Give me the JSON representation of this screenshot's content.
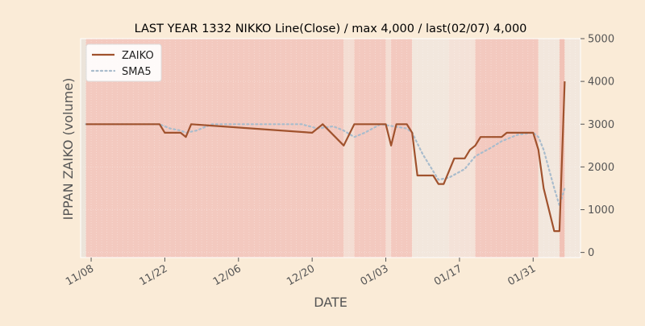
{
  "chart_data": {
    "type": "line",
    "title": "LAST YEAR 1332 NIKKO Line(Close) / max 4,000 / last(02/07) 4,000",
    "xlabel": "DATE",
    "ylabel": "IPPAN ZAIKO (volume)",
    "ylim": [
      -120,
      5000
    ],
    "y_axis_side": "right",
    "y_ticks": [
      0,
      1000,
      2000,
      3000,
      4000,
      5000
    ],
    "y_tick_labels": [
      "0",
      "1000",
      "2000",
      "3000",
      "4000",
      "5000"
    ],
    "x_range": [
      "2022-11-06",
      "2023-02-09"
    ],
    "x_ticks": [
      "2022-11-08",
      "2022-11-22",
      "2022-12-06",
      "2022-12-20",
      "2023-01-03",
      "2023-01-17",
      "2023-01-31"
    ],
    "x_tick_labels": [
      "11/08",
      "11/22",
      "12/06",
      "12/20",
      "01/03",
      "01/17",
      "01/31"
    ],
    "legend_position": "top-left",
    "grid": true,
    "series": [
      {
        "name": "ZAIKO",
        "color": "#a0522d",
        "style": "solid",
        "points": [
          [
            "2022-11-07",
            3000
          ],
          [
            "2022-11-21",
            3000
          ],
          [
            "2022-11-22",
            2800
          ],
          [
            "2022-11-25",
            2800
          ],
          [
            "2022-11-26",
            2700
          ],
          [
            "2022-11-27",
            3000
          ],
          [
            "2022-12-20",
            2800
          ],
          [
            "2022-12-22",
            3000
          ],
          [
            "2022-12-26",
            2500
          ],
          [
            "2022-12-28",
            3000
          ],
          [
            "2023-01-03",
            3000
          ],
          [
            "2023-01-04",
            2500
          ],
          [
            "2023-01-05",
            3000
          ],
          [
            "2023-01-07",
            3000
          ],
          [
            "2023-01-08",
            2800
          ],
          [
            "2023-01-09",
            1800
          ],
          [
            "2023-01-12",
            1800
          ],
          [
            "2023-01-13",
            1600
          ],
          [
            "2023-01-14",
            1600
          ],
          [
            "2023-01-16",
            2200
          ],
          [
            "2023-01-18",
            2200
          ],
          [
            "2023-01-19",
            2400
          ],
          [
            "2023-01-20",
            2500
          ],
          [
            "2023-01-21",
            2700
          ],
          [
            "2023-01-25",
            2700
          ],
          [
            "2023-01-26",
            2800
          ],
          [
            "2023-01-31",
            2800
          ],
          [
            "2023-02-01",
            2400
          ],
          [
            "2023-02-02",
            1500
          ],
          [
            "2023-02-04",
            500
          ],
          [
            "2023-02-05",
            500
          ],
          [
            "2023-02-06",
            4000
          ]
        ]
      },
      {
        "name": "SMA5",
        "color": "#a9bccc",
        "style": "dotted",
        "points": [
          [
            "2022-11-07",
            3000
          ],
          [
            "2022-11-21",
            3000
          ],
          [
            "2022-11-23",
            2900
          ],
          [
            "2022-11-25",
            2850
          ],
          [
            "2022-11-26",
            2800
          ],
          [
            "2022-11-28",
            2850
          ],
          [
            "2022-11-30",
            2950
          ],
          [
            "2022-12-01",
            3000
          ],
          [
            "2022-12-18",
            3000
          ],
          [
            "2022-12-21",
            2900
          ],
          [
            "2022-12-24",
            2950
          ],
          [
            "2022-12-26",
            2850
          ],
          [
            "2022-12-28",
            2700
          ],
          [
            "2022-12-30",
            2800
          ],
          [
            "2023-01-02",
            3000
          ],
          [
            "2023-01-07",
            2900
          ],
          [
            "2023-01-08",
            2800
          ],
          [
            "2023-01-10",
            2300
          ],
          [
            "2023-01-12",
            1900
          ],
          [
            "2023-01-13",
            1700
          ],
          [
            "2023-01-15",
            1750
          ],
          [
            "2023-01-18",
            1950
          ],
          [
            "2023-01-20",
            2250
          ],
          [
            "2023-01-23",
            2450
          ],
          [
            "2023-01-25",
            2600
          ],
          [
            "2023-01-28",
            2750
          ],
          [
            "2023-01-31",
            2800
          ],
          [
            "2023-02-01",
            2700
          ],
          [
            "2023-02-02",
            2400
          ],
          [
            "2023-02-04",
            1500
          ],
          [
            "2023-02-05",
            1100
          ],
          [
            "2023-02-06",
            1500
          ]
        ]
      }
    ],
    "background_bands": [
      {
        "from": "2022-11-06",
        "to": "2022-11-07",
        "color": "#ece4da"
      },
      {
        "from": "2022-11-07",
        "to": "2022-12-26",
        "color": "#f3c9bf"
      },
      {
        "from": "2022-12-26",
        "to": "2022-12-28",
        "color": "#f4ddd3"
      },
      {
        "from": "2022-12-28",
        "to": "2023-01-03",
        "color": "#f3c9bf"
      },
      {
        "from": "2023-01-03",
        "to": "2023-01-04",
        "color": "#f4ddd3"
      },
      {
        "from": "2023-01-04",
        "to": "2023-01-08",
        "color": "#f3c9bf"
      },
      {
        "from": "2023-01-08",
        "to": "2023-01-15",
        "color": "#f2e7dd"
      },
      {
        "from": "2023-01-15",
        "to": "2023-01-20",
        "color": "#f4e2d8"
      },
      {
        "from": "2023-01-20",
        "to": "2023-02-01",
        "color": "#f3c9bf"
      },
      {
        "from": "2023-02-01",
        "to": "2023-02-05",
        "color": "#f2e7dd"
      },
      {
        "from": "2023-02-05",
        "to": "2023-02-06",
        "color": "#f1c2b6"
      },
      {
        "from": "2023-02-06",
        "to": "2023-02-09",
        "color": "#f2e7dd"
      }
    ]
  }
}
